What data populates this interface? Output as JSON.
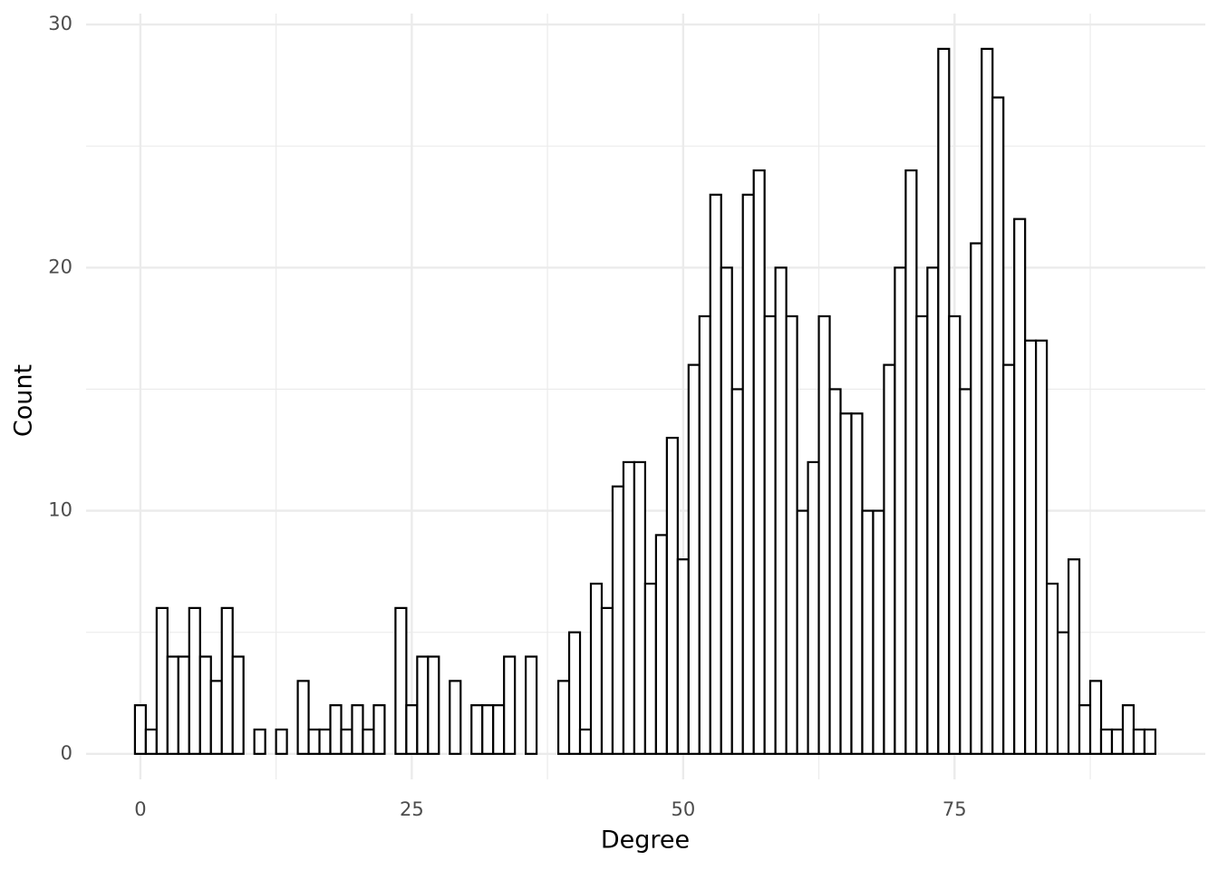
{
  "chart_data": {
    "type": "histogram",
    "x_label": "Degree",
    "y_label": "Count",
    "bins": [
      -0.5,
      0.5,
      1.5,
      2.5,
      3.5,
      4.5,
      5.5,
      6.5,
      7.5,
      8.5,
      9.5,
      10.5,
      11.5,
      12.5,
      13.5,
      14.5,
      15.5,
      16.5,
      17.5,
      18.5,
      19.5,
      20.5,
      21.5,
      22.5,
      23.5,
      24.5,
      25.5,
      26.5,
      27.5,
      28.5,
      29.5,
      30.5,
      31.5,
      32.5,
      33.5,
      34.5,
      35.5,
      36.5,
      37.5,
      38.5,
      39.5,
      40.5,
      41.5,
      42.5,
      43.5,
      44.5,
      45.5,
      46.5,
      47.5,
      48.5,
      49.5,
      50.5,
      51.5,
      52.5,
      53.5,
      54.5,
      55.5,
      56.5,
      57.5,
      58.5,
      59.5,
      60.5,
      61.5,
      62.5,
      63.5,
      64.5,
      65.5,
      66.5,
      67.5,
      68.5,
      69.5,
      70.5,
      71.5,
      72.5,
      73.5,
      74.5,
      75.5,
      76.5,
      77.5,
      78.5,
      79.5,
      80.5,
      81.5,
      82.5,
      83.5,
      84.5,
      85.5,
      86.5,
      87.5,
      88.5,
      89.5,
      90.5,
      91.5,
      92.5,
      93.5
    ],
    "values": [
      2,
      1,
      6,
      4,
      4,
      6,
      4,
      3,
      6,
      4,
      0,
      1,
      0,
      1,
      0,
      3,
      1,
      1,
      2,
      1,
      2,
      1,
      2,
      0,
      6,
      2,
      4,
      4,
      0,
      3,
      0,
      2,
      2,
      2,
      4,
      0,
      4,
      0,
      0,
      3,
      5,
      1,
      7,
      6,
      11,
      12,
      12,
      7,
      9,
      13,
      8,
      16,
      18,
      23,
      20,
      15,
      23,
      24,
      18,
      20,
      18,
      10,
      12,
      18,
      15,
      14,
      14,
      10,
      10,
      16,
      20,
      24,
      18,
      20,
      29,
      18,
      15,
      21,
      29,
      27,
      16,
      22,
      17,
      17,
      7,
      5,
      8,
      2,
      3,
      1,
      1,
      2,
      1,
      1
    ],
    "fill": "#ffffff",
    "edge_color": "#000000",
    "xlim": [
      -5,
      98.1
    ],
    "xticks": [
      0,
      25,
      50,
      75
    ],
    "xminor": [
      12.5,
      37.5,
      62.5,
      87.5
    ],
    "ylim": [
      -1.05,
      30.45
    ],
    "yticks": [
      0,
      10,
      20,
      30
    ],
    "yminor": [
      5,
      15,
      25
    ],
    "grid": true
  }
}
